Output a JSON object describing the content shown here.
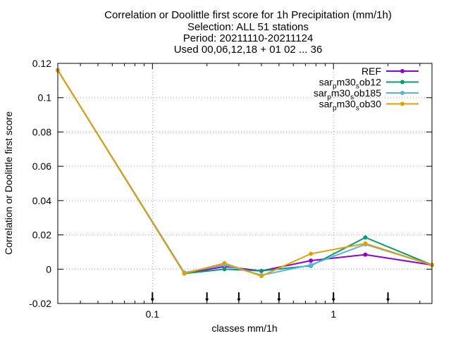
{
  "chart_data": {
    "type": "line",
    "title": [
      "Correlation or Doolittle first score  for 1h Precipitation (mm/1h)",
      "Selection: ALL     51 stations",
      "Period: 20211110-20211124",
      "Used 00,06,12,18 + 01 02 ... 36"
    ],
    "xlabel": "classes mm/1h",
    "ylabel": "Correlation or Doolittle first score",
    "xscale": "log",
    "xlim": [
      0.03,
      3.5
    ],
    "ylim": [
      -0.02,
      0.12
    ],
    "xticks": [
      {
        "value": 0.1,
        "label": "0.1"
      },
      {
        "value": 1,
        "label": "1"
      }
    ],
    "yticks": [
      {
        "value": -0.02,
        "label": "-0.02"
      },
      {
        "value": 0,
        "label": "0"
      },
      {
        "value": 0.02,
        "label": "0.02"
      },
      {
        "value": 0.04,
        "label": "0.04"
      },
      {
        "value": 0.06,
        "label": "0.06"
      },
      {
        "value": 0.08,
        "label": "0.08"
      },
      {
        "value": 0.1,
        "label": "0.1"
      },
      {
        "value": 0.12,
        "label": "0.12"
      }
    ],
    "grid": true,
    "legend_position": "top-right",
    "class_markers": [
      0.1,
      0.2,
      0.3,
      0.5,
      1,
      2
    ],
    "x": [
      0.03,
      0.15,
      0.25,
      0.4,
      0.75,
      1.5,
      3.5
    ],
    "series": [
      {
        "name": "REF",
        "name_parts": [
          "REF"
        ],
        "color": "#9400d3",
        "values": [
          0.116,
          -0.0025,
          0.0015,
          -0.001,
          0.005,
          0.0085,
          0.0025
        ]
      },
      {
        "name": "sar_p m30_s ob12",
        "name_parts": [
          "sar",
          "p",
          "m30",
          "s",
          "ob12"
        ],
        "color": "#009e73",
        "values": [
          0.116,
          -0.0025,
          0.0,
          -0.001,
          0.002,
          0.0185,
          0.0025
        ]
      },
      {
        "name": "sar_p m30_s ob185",
        "name_parts": [
          "sar",
          "p",
          "m30",
          "s",
          "ob185"
        ],
        "color": "#56b4e9",
        "values": [
          0.116,
          -0.002,
          0.0025,
          -0.0035,
          0.0025,
          0.0145,
          0.0025
        ]
      },
      {
        "name": "sar_p m30_s ob30",
        "name_parts": [
          "sar",
          "p",
          "m30",
          "s",
          "ob30"
        ],
        "color": "#e69f00",
        "values": [
          0.116,
          -0.0025,
          0.0035,
          -0.004,
          0.009,
          0.015,
          0.0025
        ]
      }
    ]
  }
}
